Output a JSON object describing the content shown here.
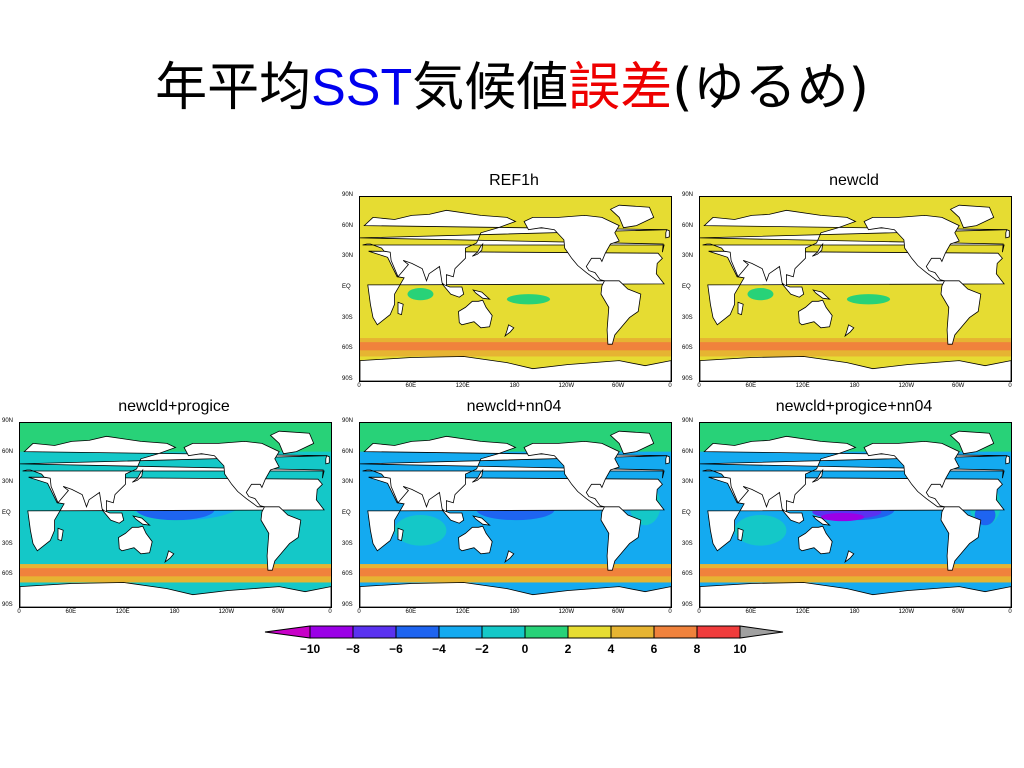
{
  "slide": {
    "title_parts": [
      "年平均",
      "SST",
      "気候値",
      "誤差",
      "(ゆるめ)"
    ],
    "title_colors": [
      "#000000",
      "#0000ee",
      "#000000",
      "#ee0000",
      "#000000"
    ]
  },
  "lat_ticks": [
    "90N",
    "60N",
    "30N",
    "EQ",
    "30S",
    "60S",
    "90S"
  ],
  "lon_ticks": [
    "0",
    "60E",
    "120E",
    "180",
    "120W",
    "60W",
    "0"
  ],
  "panels": [
    {
      "title": "REF1h",
      "bias_level": 0.2
    },
    {
      "title": "newcld",
      "bias_level": 0.35
    },
    {
      "title": "newcld+progice",
      "bias_level": 0.55
    },
    {
      "title": "newcld+nn04",
      "bias_level": 0.7
    },
    {
      "title": "newcld+progice+nn04",
      "bias_level": 0.9
    }
  ],
  "colorbar": {
    "labels": [
      "-10",
      "-8",
      "-6",
      "-4",
      "-2",
      "0",
      "2",
      "4",
      "6",
      "8",
      "10"
    ],
    "colors": [
      "#9b00e6",
      "#5a32f0",
      "#1e64f0",
      "#14aaf0",
      "#14c8c8",
      "#28d278",
      "#e6dc32",
      "#e6b432",
      "#f0823c",
      "#f03c3c",
      "#f01e96",
      "#a0a0a0"
    ]
  }
}
